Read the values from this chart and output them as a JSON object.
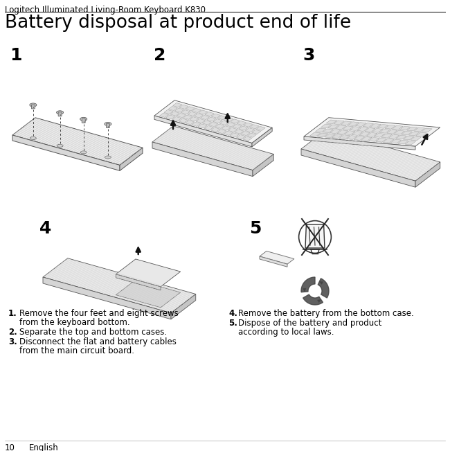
{
  "bg_color": "#ffffff",
  "header_text": "Logitech Illuminated Living-Room Keyboard K830",
  "header_fontsize": 8.5,
  "header_color": "#000000",
  "title_text": "Battery disposal at product end of life",
  "title_fontsize": 19,
  "title_color": "#000000",
  "step_label_fontsize": 18,
  "step_label_color": "#000000",
  "instructions": [
    {
      "num": "1.",
      "text": "Remove the four feet and eight screws\nfrom the keyboard bottom."
    },
    {
      "num": "2.",
      "text": "Separate the top and bottom cases."
    },
    {
      "num": "3.",
      "text": "Disconnect the flat and battery cables\nfrom the main circuit board."
    },
    {
      "num": "4.",
      "text": "Remove the battery from the bottom case."
    },
    {
      "num": "5.",
      "text": "Dispose of the battery and product\naccording to local laws."
    }
  ],
  "instruction_fontsize": 8.5,
  "footer_text": "10        English",
  "footer_fontsize": 8.5,
  "figure_width": 6.5,
  "figure_height": 6.51,
  "dpi": 100
}
